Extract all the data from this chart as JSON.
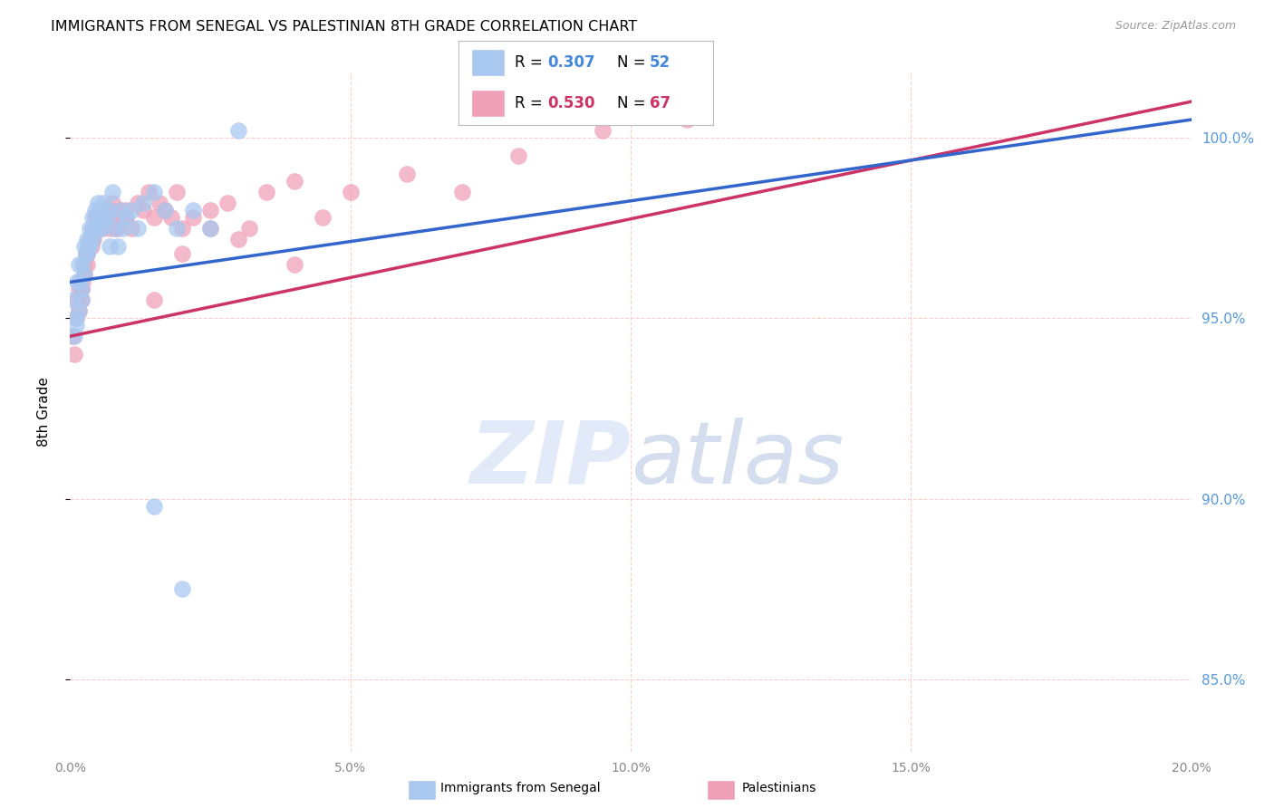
{
  "title": "IMMIGRANTS FROM SENEGAL VS PALESTINIAN 8TH GRADE CORRELATION CHART",
  "source": "Source: ZipAtlas.com",
  "ylabel": "8th Grade",
  "xlim": [
    0.0,
    20.0
  ],
  "ylim": [
    83.0,
    101.8
  ],
  "yticks": [
    85.0,
    90.0,
    95.0,
    100.0
  ],
  "ytick_labels": [
    "85.0%",
    "90.0%",
    "95.0%",
    "100.0%"
  ],
  "r_blue": 0.307,
  "n_blue": 52,
  "r_pink": 0.53,
  "n_pink": 67,
  "blue_color": "#A8C8F0",
  "pink_color": "#F0A0B8",
  "blue_line_color": "#3366CC",
  "pink_line_color": "#CC3366",
  "background_color": "#FFFFFF",
  "grid_color": "#DDDDDD",
  "blue_scatter_x": [
    0.05,
    0.08,
    0.1,
    0.12,
    0.15,
    0.18,
    0.2,
    0.22,
    0.25,
    0.28,
    0.3,
    0.32,
    0.35,
    0.38,
    0.4,
    0.42,
    0.45,
    0.48,
    0.5,
    0.52,
    0.55,
    0.58,
    0.6,
    0.65,
    0.7,
    0.75,
    0.8,
    0.85,
    0.9,
    0.95,
    1.0,
    1.1,
    1.2,
    1.3,
    1.5,
    1.7,
    1.9,
    2.2,
    2.5,
    3.0,
    0.1,
    0.15,
    0.2,
    0.25,
    0.3,
    0.35,
    0.4,
    0.5,
    0.6,
    0.7,
    1.5,
    2.0
  ],
  "blue_scatter_y": [
    95.5,
    94.5,
    95.0,
    96.0,
    96.5,
    96.0,
    95.5,
    96.5,
    97.0,
    96.8,
    97.2,
    97.0,
    97.5,
    97.3,
    97.8,
    97.5,
    98.0,
    97.8,
    98.2,
    97.6,
    98.0,
    97.5,
    98.2,
    97.8,
    97.0,
    98.5,
    97.5,
    97.0,
    98.0,
    97.5,
    97.8,
    98.0,
    97.5,
    98.2,
    98.5,
    98.0,
    97.5,
    98.0,
    97.5,
    100.2,
    94.8,
    95.2,
    95.8,
    96.2,
    96.8,
    97.0,
    97.2,
    97.5,
    97.8,
    98.0,
    89.8,
    87.5
  ],
  "pink_scatter_x": [
    0.05,
    0.08,
    0.1,
    0.12,
    0.15,
    0.18,
    0.2,
    0.22,
    0.25,
    0.28,
    0.3,
    0.32,
    0.35,
    0.38,
    0.4,
    0.42,
    0.45,
    0.48,
    0.5,
    0.55,
    0.6,
    0.65,
    0.7,
    0.75,
    0.8,
    0.85,
    0.9,
    0.95,
    1.0,
    1.1,
    1.2,
    1.3,
    1.4,
    1.5,
    1.6,
    1.7,
    1.8,
    1.9,
    2.0,
    2.2,
    2.5,
    2.8,
    3.2,
    3.5,
    4.0,
    4.5,
    5.0,
    6.0,
    7.0,
    8.0,
    9.5,
    11.0,
    0.15,
    0.2,
    0.25,
    0.3,
    0.4,
    0.5,
    0.6,
    0.7,
    0.8,
    1.0,
    1.5,
    2.0,
    2.5,
    3.0,
    4.0
  ],
  "pink_scatter_y": [
    94.5,
    94.0,
    95.0,
    95.5,
    95.8,
    96.0,
    95.5,
    96.0,
    96.5,
    96.8,
    96.5,
    97.0,
    97.2,
    97.0,
    97.5,
    97.2,
    97.8,
    97.5,
    97.8,
    97.5,
    98.0,
    97.8,
    97.5,
    98.2,
    97.8,
    97.5,
    98.0,
    97.8,
    98.0,
    97.5,
    98.2,
    98.0,
    98.5,
    97.8,
    98.2,
    98.0,
    97.8,
    98.5,
    97.5,
    97.8,
    98.0,
    98.2,
    97.5,
    98.5,
    98.8,
    97.8,
    98.5,
    99.0,
    98.5,
    99.5,
    100.2,
    100.5,
    95.2,
    95.8,
    96.2,
    96.8,
    97.2,
    97.5,
    97.8,
    98.0,
    97.5,
    97.8,
    95.5,
    96.8,
    97.5,
    97.2,
    96.5
  ]
}
